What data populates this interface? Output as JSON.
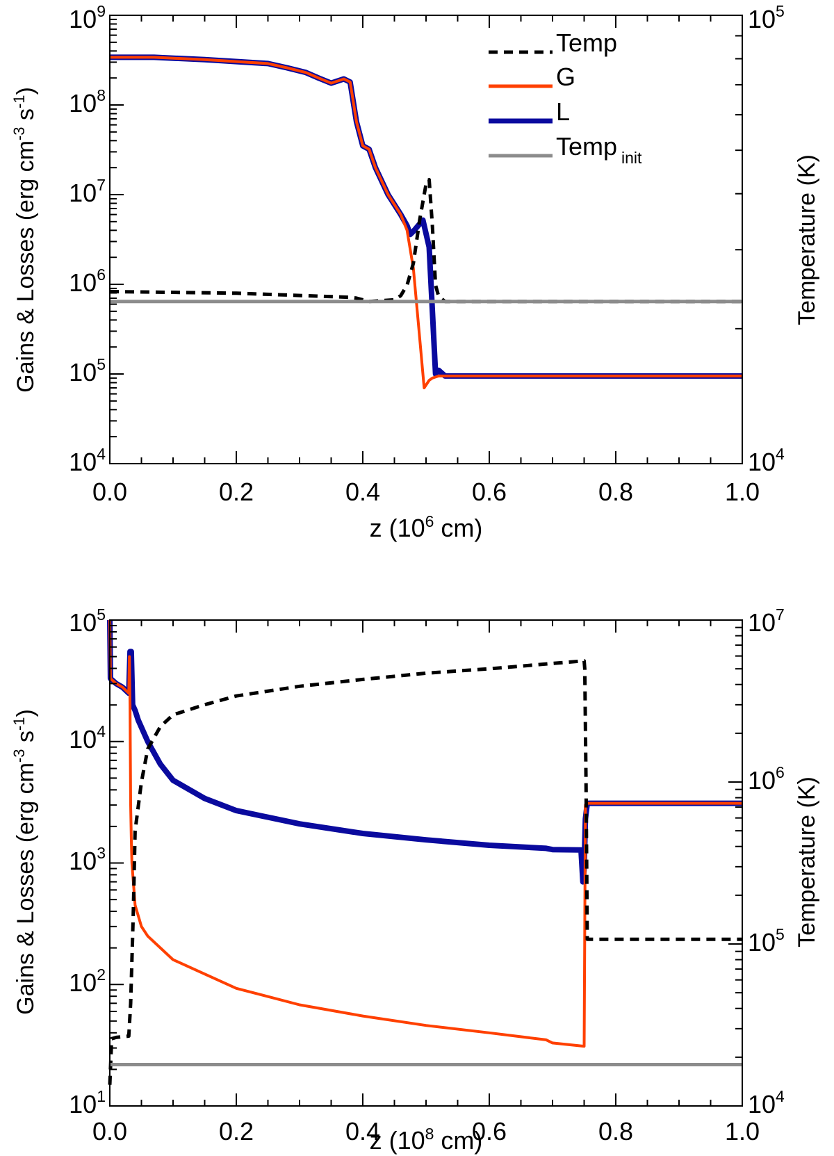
{
  "colors": {
    "temp": "#000000",
    "gain": "#ff4000",
    "loss": "#0a0a9e",
    "temp_init": "#8c8c8c",
    "axis": "#000000"
  },
  "chart_data": [
    {
      "type": "line",
      "panel": "top",
      "xlabel_main": "z (10",
      "xlabel_exp": "6",
      "xlabel_tail": " cm)",
      "ylabel_main": "Gains & Losses (erg cm",
      "ylabel_exp1": "-3",
      "ylabel_mid": " s",
      "ylabel_exp2": "-1",
      "ylabel_tail": ")",
      "y2label": "Temperature (K)",
      "xlim": [
        0.0,
        1.0
      ],
      "ylim_log10": [
        4,
        9
      ],
      "y2lim_log10": [
        4,
        5
      ],
      "x_ticks": [
        "0.0",
        "0.2",
        "0.4",
        "0.6",
        "0.8",
        "1.0"
      ],
      "y_ticks": [
        {
          "base": "10",
          "exp": "4"
        },
        {
          "base": "10",
          "exp": "5"
        },
        {
          "base": "10",
          "exp": "6"
        },
        {
          "base": "10",
          "exp": "7"
        },
        {
          "base": "10",
          "exp": "8"
        },
        {
          "base": "10",
          "exp": "9"
        }
      ],
      "y2_ticks": [
        {
          "base": "10",
          "exp": "4"
        },
        {
          "base": "10",
          "exp": "5"
        }
      ],
      "legend": {
        "placement": "top-right",
        "entries": [
          {
            "label": "Temp",
            "sub": "",
            "series": "Temp"
          },
          {
            "label": "G",
            "sub": "",
            "series": "G"
          },
          {
            "label": "L",
            "sub": "",
            "series": "L"
          },
          {
            "label": "Temp",
            "sub": "init",
            "series": "Temp_init"
          }
        ]
      },
      "series": [
        {
          "name": "L",
          "axis": "left",
          "style": "solid-thick",
          "x": [
            0.0,
            0.07,
            0.15,
            0.25,
            0.28,
            0.31,
            0.33,
            0.35,
            0.37,
            0.38,
            0.39,
            0.4,
            0.41,
            0.42,
            0.44,
            0.46,
            0.47,
            0.475,
            0.48,
            0.495,
            0.505,
            0.515,
            0.52,
            0.53,
            1.0
          ],
          "y": [
            340000000.0,
            340000000.0,
            320000000.0,
            290000000.0,
            260000000.0,
            230000000.0,
            200000000.0,
            175000000.0,
            195000000.0,
            180000000.0,
            65000000.0,
            35000000.0,
            32000000.0,
            20000000.0,
            10000000.0,
            6000000.0,
            4500000.0,
            3600000.0,
            3900000.0,
            5200000.0,
            2600000.0,
            100000.0,
            110000.0,
            95000.0,
            95000.0
          ]
        },
        {
          "name": "G",
          "axis": "left",
          "style": "solid",
          "x": [
            0.0,
            0.07,
            0.15,
            0.25,
            0.28,
            0.31,
            0.33,
            0.35,
            0.37,
            0.38,
            0.39,
            0.4,
            0.41,
            0.42,
            0.44,
            0.46,
            0.47,
            0.48,
            0.49,
            0.497,
            0.505,
            0.51,
            0.52,
            0.53,
            1.0
          ],
          "y": [
            340000000.0,
            340000000.0,
            320000000.0,
            290000000.0,
            260000000.0,
            230000000.0,
            200000000.0,
            175000000.0,
            195000000.0,
            180000000.0,
            65000000.0,
            35000000.0,
            32000000.0,
            20000000.0,
            10000000.0,
            6000000.0,
            4000000.0,
            1500000.0,
            250000.0,
            70000.0,
            85000.0,
            90000.0,
            95000.0,
            95000.0,
            95000.0
          ]
        },
        {
          "name": "Temp",
          "axis": "right",
          "style": "dashed",
          "x": [
            0.0,
            0.2,
            0.38,
            0.39,
            0.41,
            0.45,
            0.46,
            0.47,
            0.48,
            0.49,
            0.5,
            0.505,
            0.51,
            0.515,
            0.52,
            0.53,
            1.0
          ],
          "y": [
            24200,
            24000,
            23500,
            23400,
            23000,
            23200,
            23700,
            25000,
            28000,
            35000,
            42000,
            43000,
            34000,
            25000,
            23600,
            23000,
            23000
          ]
        },
        {
          "name": "Temp_init",
          "axis": "right",
          "style": "solid-gray",
          "x": [
            0.0,
            1.0
          ],
          "y": [
            23000,
            23000
          ]
        }
      ]
    },
    {
      "type": "line",
      "panel": "bottom",
      "xlabel_main": "z (10",
      "xlabel_exp": "8",
      "xlabel_tail": " cm)",
      "ylabel_main": "Gains & Losses (erg cm",
      "ylabel_exp1": "-3",
      "ylabel_mid": " s",
      "ylabel_exp2": "-1",
      "ylabel_tail": ")",
      "y2label": "Temperature (K)",
      "xlim": [
        0.0,
        1.0
      ],
      "ylim_log10": [
        1,
        5
      ],
      "y2lim_log10": [
        4,
        7
      ],
      "x_ticks": [
        "0.0",
        "0.2",
        "0.4",
        "0.6",
        "0.8",
        "1.0"
      ],
      "y_ticks": [
        {
          "base": "10",
          "exp": "1"
        },
        {
          "base": "10",
          "exp": "2"
        },
        {
          "base": "10",
          "exp": "3"
        },
        {
          "base": "10",
          "exp": "4"
        },
        {
          "base": "10",
          "exp": "5"
        }
      ],
      "y2_ticks": [
        {
          "base": "10",
          "exp": "4"
        },
        {
          "base": "10",
          "exp": "5"
        },
        {
          "base": "10",
          "exp": "6"
        },
        {
          "base": "10",
          "exp": "7"
        }
      ],
      "series": [
        {
          "name": "L",
          "axis": "left",
          "style": "solid-thick",
          "x": [
            0.0,
            0.001,
            0.01,
            0.02,
            0.03,
            0.032,
            0.034,
            0.036,
            0.038,
            0.04,
            0.045,
            0.06,
            0.08,
            0.1,
            0.15,
            0.2,
            0.3,
            0.4,
            0.5,
            0.6,
            0.69,
            0.7,
            0.745,
            0.748,
            0.75,
            0.752,
            0.755,
            1.0
          ],
          "y": [
            100000,
            33000,
            30000,
            28000,
            25000,
            55000,
            55000,
            20000,
            19000,
            18000,
            15000,
            10000,
            6500,
            4800,
            3400,
            2700,
            2100,
            1750,
            1550,
            1400,
            1320,
            1290,
            1280,
            700,
            900,
            2300,
            3100,
            3100
          ]
        },
        {
          "name": "G",
          "axis": "left",
          "style": "solid",
          "x": [
            0.0,
            0.001,
            0.01,
            0.02,
            0.03,
            0.031,
            0.032,
            0.033,
            0.034,
            0.035,
            0.04,
            0.05,
            0.06,
            0.1,
            0.2,
            0.3,
            0.4,
            0.5,
            0.6,
            0.69,
            0.7,
            0.75,
            0.752,
            0.755,
            1.0
          ],
          "y": [
            100000,
            33000,
            30000,
            28000,
            25000,
            50000,
            20000,
            3000,
            1600,
            1000,
            450,
            300,
            250,
            160,
            93,
            68,
            55,
            46,
            40,
            35,
            33,
            31,
            3000,
            3100,
            3100
          ]
        },
        {
          "name": "Temp",
          "axis": "right",
          "style": "dashed",
          "x": [
            0.0,
            0.003,
            0.01,
            0.03,
            0.033,
            0.037,
            0.04,
            0.05,
            0.06,
            0.08,
            0.1,
            0.15,
            0.2,
            0.3,
            0.4,
            0.5,
            0.6,
            0.7,
            0.75,
            0.751,
            0.753,
            0.755,
            1.0
          ],
          "y": [
            13500,
            26000,
            26500,
            27000,
            43000,
            150000,
            500000,
            1000000,
            1600000,
            2200000,
            2600000,
            3000000,
            3400000,
            3900000,
            4300000,
            4700000,
            5000000,
            5400000,
            5600000,
            5000000,
            1000000,
            107000,
            107000
          ]
        },
        {
          "name": "Temp_init",
          "axis": "right",
          "style": "solid-gray",
          "x": [
            0.0,
            1.0
          ],
          "y": [
            18000,
            18000
          ]
        }
      ]
    }
  ]
}
